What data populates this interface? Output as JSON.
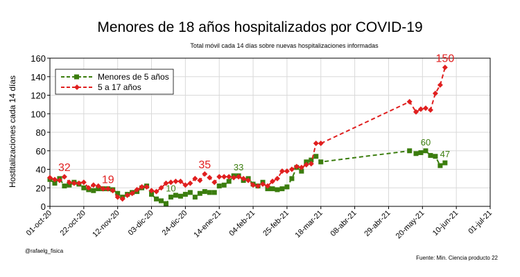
{
  "chart_data": {
    "type": "line",
    "title": "Menores de 18 años hospitalizados por COVID-19",
    "subtitle": "Total móvil cada 14 días sobre nuevas hospitalizaciones informadas",
    "ylabel": "Hostitalizaciones cada 14 días",
    "xlabel": "",
    "ylim": [
      0,
      160
    ],
    "yticks": [
      0,
      20,
      40,
      60,
      80,
      100,
      120,
      140,
      160
    ],
    "xlim_days": [
      0,
      273
    ],
    "xticks": [
      {
        "day": 0,
        "label": "01-oct-20"
      },
      {
        "day": 21,
        "label": "22-oct-20"
      },
      {
        "day": 42,
        "label": "12-nov-20"
      },
      {
        "day": 63,
        "label": "03-dic-20"
      },
      {
        "day": 84,
        "label": "24-dic-20"
      },
      {
        "day": 105,
        "label": "14-ene-21"
      },
      {
        "day": 126,
        "label": "04-feb-21"
      },
      {
        "day": 147,
        "label": "25-feb-21"
      },
      {
        "day": 168,
        "label": "18-mar-21"
      },
      {
        "day": 189,
        "label": "08-abr-21"
      },
      {
        "day": 210,
        "label": "29-abr-21"
      },
      {
        "day": 231,
        "label": "20-may-21"
      },
      {
        "day": 252,
        "label": "10-jun-21"
      },
      {
        "day": 273,
        "label": "01-jul-21"
      }
    ],
    "grid": true,
    "legend_position": "top-left",
    "series": [
      {
        "name": "Menores de 5 años",
        "color": "#3b7d0e",
        "marker": "square",
        "x": [
          0,
          3,
          6,
          9,
          12,
          15,
          18,
          21,
          24,
          27,
          30,
          33,
          36,
          39,
          42,
          45,
          48,
          51,
          54,
          57,
          60,
          63,
          66,
          69,
          72,
          75,
          78,
          81,
          84,
          87,
          90,
          93,
          96,
          99,
          102,
          105,
          108,
          111,
          114,
          117,
          120,
          123,
          126,
          129,
          132,
          135,
          138,
          141,
          144,
          147,
          150,
          153,
          156,
          159,
          162,
          165,
          168,
          223,
          227,
          230,
          233,
          236,
          239,
          242,
          245
        ],
        "values": [
          29,
          25,
          30,
          22,
          23,
          26,
          24,
          20,
          18,
          17,
          19,
          19,
          19,
          18,
          14,
          10,
          13,
          15,
          16,
          20,
          22,
          13,
          8,
          6,
          3,
          10,
          12,
          11,
          13,
          15,
          10,
          14,
          16,
          15,
          15,
          22,
          23,
          27,
          33,
          33,
          28,
          30,
          24,
          22,
          26,
          19,
          19,
          18,
          19,
          21,
          30,
          42,
          38,
          48,
          50,
          54,
          48,
          60,
          57,
          58,
          60,
          55,
          54,
          44,
          47
        ]
      },
      {
        "name": "5 a 17 años",
        "color": "#e01f1f",
        "marker": "diamond",
        "x": [
          0,
          3,
          6,
          9,
          12,
          15,
          18,
          21,
          24,
          27,
          30,
          33,
          36,
          39,
          42,
          45,
          48,
          51,
          54,
          57,
          60,
          63,
          66,
          69,
          72,
          75,
          78,
          81,
          84,
          87,
          90,
          93,
          96,
          99,
          102,
          105,
          108,
          111,
          114,
          117,
          120,
          123,
          126,
          129,
          132,
          135,
          138,
          141,
          144,
          147,
          150,
          153,
          156,
          159,
          162,
          165,
          168,
          223,
          227,
          230,
          233,
          236,
          239,
          242,
          245
        ],
        "values": [
          31,
          29,
          28,
          32,
          26,
          25,
          25,
          26,
          20,
          23,
          22,
          19,
          19,
          17,
          10,
          8,
          12,
          14,
          18,
          21,
          21,
          17,
          16,
          20,
          25,
          26,
          27,
          27,
          23,
          25,
          30,
          28,
          35,
          31,
          26,
          32,
          32,
          32,
          31,
          32,
          30,
          28,
          23,
          22,
          24,
          22,
          27,
          30,
          38,
          38,
          40,
          43,
          42,
          45,
          46,
          68,
          68,
          113,
          102,
          105,
          106,
          104,
          122,
          131,
          150
        ]
      }
    ],
    "annotations": [
      {
        "text": "32",
        "series": 1,
        "x": 9,
        "y": 32
      },
      {
        "text": "19",
        "series": 1,
        "x": 36,
        "y": 19
      },
      {
        "text": "10",
        "series": 0,
        "x": 75,
        "y": 10
      },
      {
        "text": "35",
        "series": 1,
        "x": 96,
        "y": 35
      },
      {
        "text": "33",
        "series": 0,
        "x": 117,
        "y": 33
      },
      {
        "text": "150",
        "series": 1,
        "x": 245,
        "y": 150
      },
      {
        "text": "60",
        "series": 0,
        "x": 233,
        "y": 60
      },
      {
        "text": "47",
        "series": 0,
        "x": 245,
        "y": 47
      }
    ]
  },
  "credit": "@rafaelg_fisica",
  "source": "Fuente: Min. Ciencia producto 22"
}
